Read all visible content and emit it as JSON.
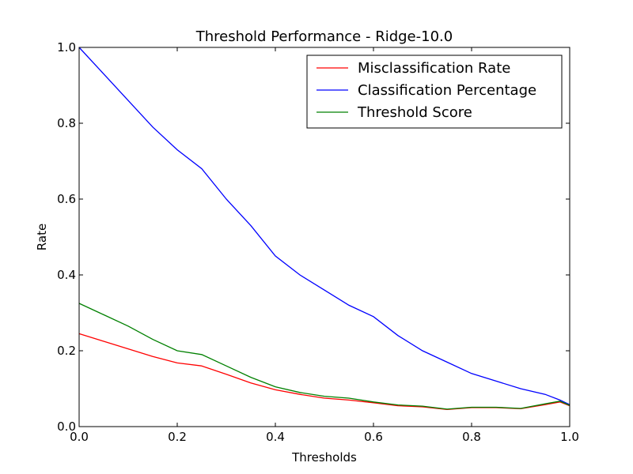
{
  "chart_data": {
    "type": "line",
    "title": "Threshold Performance - Ridge-10.0",
    "xlabel": "Thresholds",
    "ylabel": "Rate",
    "xlim": [
      0.0,
      1.0
    ],
    "ylim": [
      0.0,
      1.0
    ],
    "xticks": [
      "0.0",
      "0.2",
      "0.4",
      "0.6",
      "0.8",
      "1.0"
    ],
    "yticks": [
      "0.0",
      "0.2",
      "0.4",
      "0.6",
      "0.8",
      "1.0"
    ],
    "grid": false,
    "legend_position": "top-right",
    "x": [
      0.0,
      0.05,
      0.1,
      0.15,
      0.2,
      0.25,
      0.3,
      0.35,
      0.4,
      0.45,
      0.5,
      0.55,
      0.6,
      0.65,
      0.7,
      0.75,
      0.8,
      0.85,
      0.9,
      0.95,
      0.98,
      1.0
    ],
    "series": [
      {
        "name": "Misclassification Rate",
        "color": "#ff0000",
        "values": [
          0.245,
          0.225,
          0.205,
          0.185,
          0.168,
          0.16,
          0.138,
          0.115,
          0.097,
          0.085,
          0.075,
          0.07,
          0.063,
          0.055,
          0.052,
          0.045,
          0.05,
          0.05,
          0.047,
          0.058,
          0.065,
          0.055
        ]
      },
      {
        "name": "Classification Percentage",
        "color": "#0000ff",
        "values": [
          1.0,
          0.93,
          0.86,
          0.79,
          0.73,
          0.68,
          0.6,
          0.53,
          0.45,
          0.4,
          0.36,
          0.32,
          0.29,
          0.24,
          0.2,
          0.17,
          0.14,
          0.12,
          0.1,
          0.085,
          0.07,
          0.058
        ]
      },
      {
        "name": "Threshold Score",
        "color": "#008000",
        "values": [
          0.325,
          0.295,
          0.265,
          0.23,
          0.2,
          0.19,
          0.16,
          0.13,
          0.105,
          0.09,
          0.08,
          0.075,
          0.065,
          0.057,
          0.054,
          0.046,
          0.051,
          0.051,
          0.048,
          0.06,
          0.067,
          0.056
        ]
      }
    ]
  }
}
